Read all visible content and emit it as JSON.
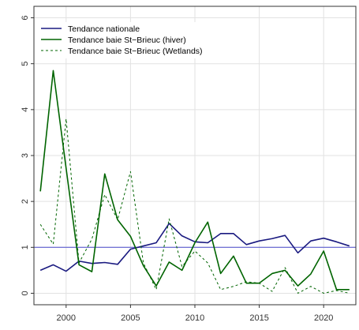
{
  "chart_data": {
    "type": "line",
    "xlim": [
      1997.5,
      2022.5
    ],
    "ylim": [
      -0.25,
      6.25
    ],
    "x_ticks": [
      2000,
      2005,
      2010,
      2015,
      2020
    ],
    "y_ticks": [
      0,
      1,
      2,
      3,
      4,
      5,
      6
    ],
    "grid": true,
    "legend_position": "top-left",
    "reference_line": {
      "y": 1,
      "color": "#4b4bcc"
    },
    "series": [
      {
        "name": "Tendance nationale",
        "color": "#1a1a80",
        "dash": "solid",
        "x": [
          1998,
          1999,
          2000,
          2001,
          2002,
          2003,
          2004,
          2005,
          2006,
          2007,
          2008,
          2009,
          2010,
          2011,
          2012,
          2013,
          2014,
          2015,
          2016,
          2017,
          2018,
          2019,
          2020,
          2021,
          2022
        ],
        "y": [
          0.5,
          0.62,
          0.48,
          0.7,
          0.65,
          0.67,
          0.63,
          0.96,
          1.03,
          1.1,
          1.52,
          1.25,
          1.12,
          1.1,
          1.3,
          1.3,
          1.06,
          1.14,
          1.19,
          1.26,
          0.88,
          1.14,
          1.2,
          1.12,
          1.03
        ]
      },
      {
        "name": "Tendance baie St−Brieuc (hiver)",
        "color": "#006400",
        "dash": "solid",
        "x": [
          1998,
          1999,
          2000,
          2001,
          2002,
          2003,
          2004,
          2005,
          2006,
          2007,
          2008,
          2009,
          2010,
          2011,
          2012,
          2013,
          2014,
          2015,
          2016,
          2017,
          2018,
          2019,
          2020,
          2021,
          2022
        ],
        "y": [
          2.22,
          4.85,
          2.72,
          0.62,
          0.47,
          2.6,
          1.6,
          1.24,
          0.6,
          0.16,
          0.68,
          0.5,
          1.1,
          1.55,
          0.43,
          0.81,
          0.22,
          0.22,
          0.43,
          0.5,
          0.16,
          0.42,
          0.92,
          0.08,
          0.08
        ]
      },
      {
        "name": "Tendance baie St−Brieuc (Wetlands)",
        "color": "#006400",
        "dash": "dashed",
        "x": [
          1998,
          1999,
          2000,
          2001,
          2002,
          2003,
          2004,
          2005,
          2006,
          2007,
          2008,
          2009,
          2010,
          2011,
          2012,
          2013,
          2014,
          2015,
          2016,
          2017,
          2018,
          2019,
          2020,
          2021,
          2022
        ],
        "y": [
          1.5,
          1.07,
          3.8,
          0.66,
          1.18,
          2.15,
          1.6,
          2.65,
          0.66,
          0.08,
          1.62,
          0.58,
          0.92,
          0.66,
          0.08,
          0.15,
          0.25,
          0.22,
          0.04,
          0.56,
          0.0,
          0.15,
          0.0,
          0.06,
          0.0
        ]
      }
    ]
  }
}
